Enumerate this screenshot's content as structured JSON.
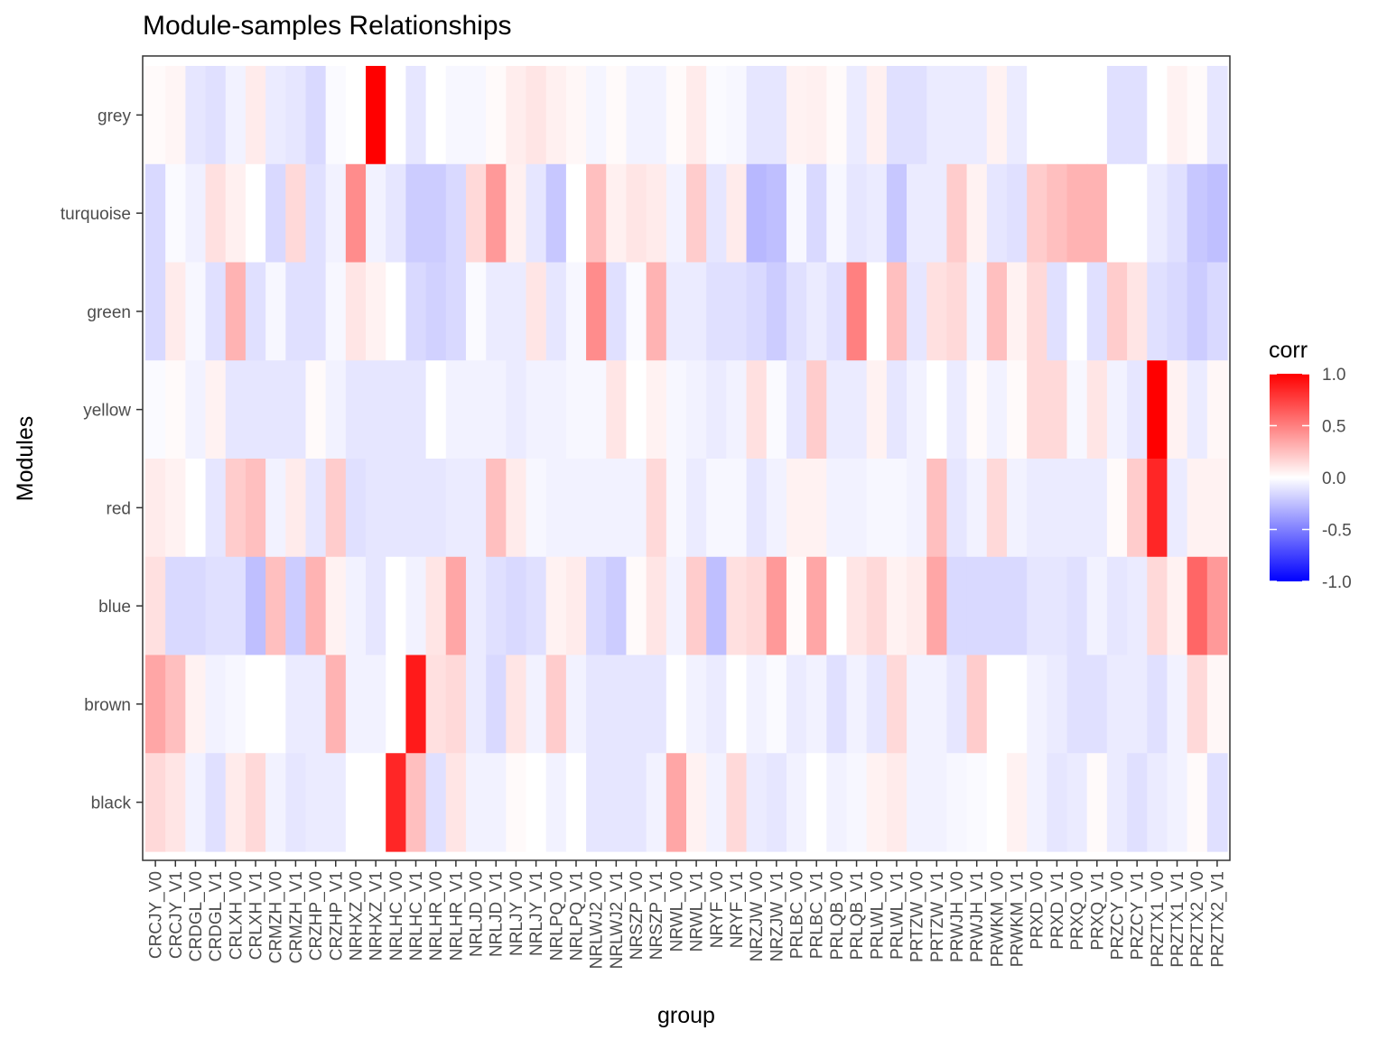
{
  "chart_data": {
    "type": "heatmap",
    "title": "Module-samples Relationships",
    "xlabel": "group",
    "ylabel": "Modules",
    "x": [
      "CRCJY_V0",
      "CRCJY_V1",
      "CRDGL_V0",
      "CRDGL_V1",
      "CRLXH_V0",
      "CRLXH_V1",
      "CRMZH_V0",
      "CRMZH_V1",
      "CRZHP_V0",
      "CRZHP_V1",
      "NRHXZ_V0",
      "NRHXZ_V1",
      "NRLHC_V0",
      "NRLHC_V1",
      "NRLHR_V0",
      "NRLHR_V1",
      "NRLJD_V0",
      "NRLJD_V1",
      "NRLJY_V0",
      "NRLJY_V1",
      "NRLPQ_V0",
      "NRLPQ_V1",
      "NRLWJ2_V0",
      "NRLWJ2_V1",
      "NRSZP_V0",
      "NRSZP_V1",
      "NRWL_V0",
      "NRWL_V1",
      "NRYF_V0",
      "NRYF_V1",
      "NRZJW_V0",
      "NRZJW_V1",
      "PRLBC_V0",
      "PRLBC_V1",
      "PRLQB_V0",
      "PRLQB_V1",
      "PRLWL_V0",
      "PRLWL_V1",
      "PRTZW_V0",
      "PRTZW_V1",
      "PRWJH_V0",
      "PRWJH_V1",
      "PRWKM_V0",
      "PRWKM_V1",
      "PRXD_V0",
      "PRXD_V1",
      "PRXQ_V0",
      "PRXQ_V1",
      "PRZCY_V0",
      "PRZCY_V1",
      "PRZTX1_V0",
      "PRZTX1_V1",
      "PRZTX2_V0",
      "PRZTX2_V1"
    ],
    "y": [
      "grey",
      "turquoise",
      "green",
      "yellow",
      "red",
      "blue",
      "brown",
      "black"
    ],
    "series": [
      {
        "name": "grey",
        "values": [
          0.02,
          0.04,
          -0.1,
          -0.12,
          -0.05,
          0.08,
          -0.08,
          -0.1,
          -0.15,
          -0.02,
          0.0,
          1.0,
          0.0,
          -0.1,
          0.0,
          -0.03,
          -0.03,
          0.02,
          0.07,
          0.1,
          0.06,
          0.03,
          -0.04,
          0.02,
          -0.05,
          -0.05,
          0.02,
          0.08,
          -0.02,
          -0.03,
          -0.1,
          -0.1,
          0.05,
          0.06,
          0.02,
          -0.08,
          0.06,
          -0.12,
          -0.12,
          -0.08,
          -0.08,
          -0.08,
          0.05,
          -0.08,
          0.0,
          0.0,
          0.0,
          0.0,
          -0.12,
          -0.12,
          0.0,
          0.05,
          0.02,
          -0.1
        ]
      },
      {
        "name": "turquoise",
        "values": [
          -0.15,
          -0.02,
          -0.06,
          0.12,
          0.06,
          0.0,
          -0.15,
          0.15,
          -0.12,
          -0.05,
          0.45,
          -0.05,
          -0.1,
          -0.2,
          -0.2,
          -0.15,
          0.15,
          0.4,
          0.06,
          -0.1,
          -0.22,
          0.0,
          0.25,
          0.06,
          0.1,
          0.08,
          -0.05,
          0.2,
          -0.1,
          0.08,
          -0.28,
          -0.25,
          -0.03,
          -0.15,
          -0.03,
          -0.1,
          -0.08,
          -0.22,
          -0.08,
          -0.08,
          0.2,
          0.05,
          -0.1,
          -0.12,
          0.2,
          0.25,
          0.3,
          0.3,
          0.0,
          0.0,
          -0.08,
          -0.12,
          -0.22,
          -0.25
        ]
      },
      {
        "name": "green",
        "values": [
          -0.15,
          0.08,
          -0.03,
          -0.12,
          0.3,
          -0.12,
          -0.03,
          -0.12,
          -0.12,
          -0.03,
          0.1,
          0.05,
          0.0,
          -0.15,
          -0.18,
          -0.15,
          -0.02,
          -0.08,
          -0.08,
          0.1,
          -0.1,
          -0.03,
          0.45,
          -0.12,
          -0.02,
          0.3,
          -0.08,
          -0.08,
          -0.12,
          -0.12,
          -0.15,
          -0.2,
          -0.12,
          -0.08,
          -0.12,
          0.5,
          0.0,
          0.25,
          -0.1,
          0.12,
          0.15,
          -0.05,
          0.25,
          0.05,
          0.15,
          -0.12,
          0.0,
          -0.12,
          0.2,
          0.1,
          -0.12,
          -0.15,
          -0.2,
          -0.15
        ]
      },
      {
        "name": "yellow",
        "values": [
          -0.02,
          0.02,
          -0.05,
          0.05,
          -0.1,
          -0.1,
          -0.1,
          -0.1,
          0.02,
          -0.05,
          -0.1,
          -0.1,
          -0.1,
          -0.1,
          0.0,
          -0.05,
          -0.05,
          -0.05,
          -0.08,
          -0.05,
          -0.05,
          -0.03,
          -0.03,
          0.1,
          0.0,
          0.05,
          -0.03,
          -0.05,
          -0.08,
          -0.05,
          0.12,
          -0.02,
          -0.1,
          0.2,
          -0.08,
          -0.08,
          0.05,
          -0.1,
          -0.05,
          0.0,
          -0.08,
          0.02,
          -0.05,
          0.02,
          0.15,
          0.15,
          -0.03,
          0.1,
          -0.05,
          -0.1,
          1.0,
          0.05,
          -0.08,
          0.03
        ]
      },
      {
        "name": "red",
        "values": [
          0.08,
          0.05,
          0.0,
          -0.1,
          0.2,
          0.25,
          -0.05,
          0.08,
          -0.1,
          0.2,
          -0.12,
          -0.1,
          -0.1,
          -0.1,
          -0.1,
          -0.08,
          -0.08,
          0.25,
          0.08,
          -0.03,
          -0.05,
          -0.05,
          -0.05,
          -0.05,
          -0.05,
          0.15,
          -0.03,
          -0.08,
          -0.03,
          -0.03,
          -0.1,
          -0.05,
          0.05,
          0.05,
          -0.05,
          -0.05,
          -0.03,
          -0.03,
          -0.05,
          0.25,
          -0.1,
          -0.05,
          0.15,
          -0.05,
          -0.08,
          -0.08,
          -0.08,
          -0.08,
          0.02,
          0.2,
          0.85,
          -0.08,
          0.05,
          0.05
        ]
      },
      {
        "name": "blue",
        "values": [
          0.12,
          -0.15,
          -0.15,
          -0.12,
          -0.12,
          -0.25,
          0.25,
          -0.2,
          0.3,
          0.05,
          -0.05,
          -0.1,
          0.0,
          -0.05,
          0.1,
          0.35,
          -0.08,
          -0.12,
          -0.15,
          -0.12,
          0.05,
          0.08,
          -0.15,
          -0.2,
          0.02,
          0.1,
          -0.05,
          0.2,
          -0.25,
          0.12,
          0.15,
          0.4,
          0.02,
          0.35,
          0.0,
          0.1,
          0.15,
          0.05,
          0.08,
          0.35,
          -0.15,
          -0.15,
          -0.15,
          -0.15,
          -0.1,
          -0.1,
          -0.12,
          -0.05,
          -0.1,
          -0.08,
          0.15,
          0.05,
          0.6,
          0.4
        ]
      },
      {
        "name": "brown",
        "values": [
          0.35,
          0.25,
          0.05,
          -0.05,
          -0.03,
          0.0,
          0.0,
          -0.08,
          -0.08,
          0.3,
          -0.05,
          -0.05,
          0.0,
          0.9,
          0.12,
          0.15,
          -0.08,
          -0.15,
          0.1,
          -0.05,
          0.2,
          -0.05,
          -0.1,
          -0.1,
          -0.1,
          -0.1,
          0.0,
          -0.05,
          -0.08,
          0.0,
          -0.05,
          -0.02,
          -0.08,
          -0.05,
          -0.12,
          -0.05,
          -0.1,
          0.15,
          -0.05,
          -0.05,
          -0.1,
          0.2,
          0.0,
          0.0,
          -0.05,
          -0.08,
          -0.12,
          -0.12,
          -0.08,
          -0.08,
          -0.12,
          -0.05,
          0.15,
          0.03
        ]
      },
      {
        "name": "black",
        "values": [
          0.15,
          0.1,
          -0.05,
          -0.12,
          0.08,
          0.15,
          -0.05,
          -0.1,
          -0.08,
          -0.08,
          0.0,
          0.0,
          0.85,
          0.25,
          -0.12,
          0.1,
          -0.05,
          -0.05,
          0.02,
          0.0,
          -0.05,
          0.0,
          -0.1,
          -0.1,
          -0.1,
          -0.05,
          0.35,
          0.05,
          -0.05,
          0.15,
          -0.08,
          -0.1,
          -0.05,
          0.0,
          -0.05,
          -0.03,
          0.05,
          0.08,
          -0.05,
          -0.05,
          -0.03,
          -0.02,
          0.0,
          0.05,
          -0.05,
          -0.1,
          -0.08,
          0.02,
          -0.08,
          -0.12,
          -0.08,
          -0.05,
          0.02,
          -0.12
        ]
      }
    ],
    "colorbar": {
      "title": "corr",
      "range": [
        -1.0,
        1.0
      ],
      "ticks": [
        "1.0",
        "0.5",
        "0.0",
        "-0.5",
        "-1.0"
      ],
      "low_color": "#0000ff",
      "mid_color": "#ffffff",
      "high_color": "#ff0000"
    },
    "grid": false,
    "legend_position": "right"
  }
}
